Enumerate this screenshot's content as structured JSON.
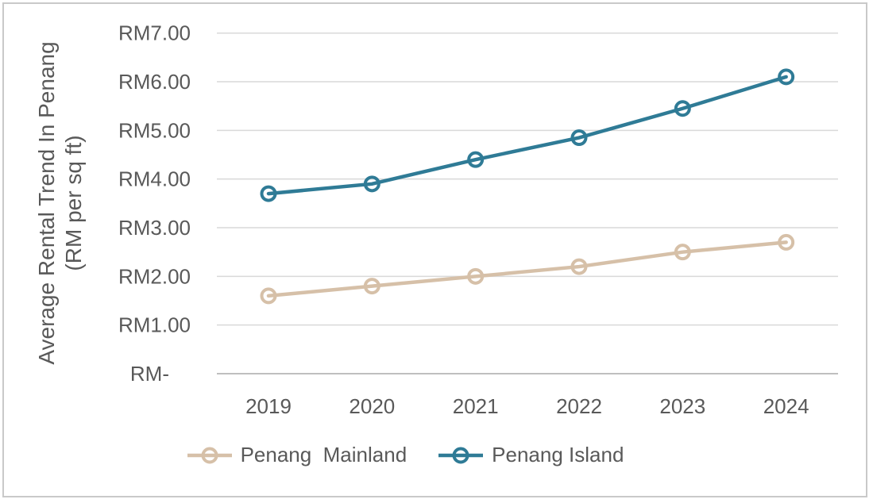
{
  "chart_data": {
    "type": "line",
    "title": "",
    "xlabel": "",
    "ylabel": "Average Rental Trend In Penang (RM per sq ft)",
    "ylabel_lines": [
      "Average Rental Trend In Penang",
      "(RM per sq ft)"
    ],
    "categories": [
      "2019",
      "2020",
      "2021",
      "2022",
      "2023",
      "2024"
    ],
    "series": [
      {
        "name": "Penang  Mainland",
        "color": "#D6C0A8",
        "values": [
          1.6,
          1.8,
          2.0,
          2.2,
          2.5,
          2.7
        ]
      },
      {
        "name": "Penang Island",
        "color": "#2F7B96",
        "values": [
          3.7,
          3.9,
          4.4,
          4.85,
          5.45,
          6.1
        ]
      }
    ],
    "y_ticks": [
      {
        "value": 7,
        "label": "RM7.00"
      },
      {
        "value": 6,
        "label": "RM6.00"
      },
      {
        "value": 5,
        "label": "RM5.00"
      },
      {
        "value": 4,
        "label": "RM4.00"
      },
      {
        "value": 3,
        "label": "RM3.00"
      },
      {
        "value": 2,
        "label": "RM2.00"
      },
      {
        "value": 1,
        "label": "RM1.00"
      },
      {
        "value": 0,
        "label": "RM-"
      }
    ],
    "ylim": [
      0,
      7
    ],
    "grid": true,
    "legend_position": "bottom",
    "marker": "open-circle"
  },
  "colors": {
    "text": "#595959",
    "gridline": "#D9D9D9",
    "axis_line": "#BFBFBF",
    "frame_border": "#C9C9C9",
    "background": "#FFFFFF"
  }
}
